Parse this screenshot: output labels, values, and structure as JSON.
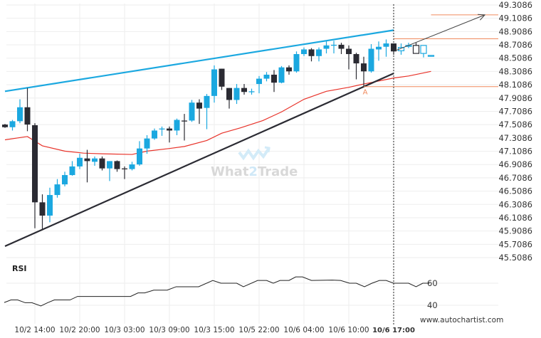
{
  "chart_data": {
    "type": "candlestick",
    "title": "",
    "price_axis": {
      "ylim": [
        45.5086,
        49.3086
      ],
      "ticks": [
        "49.3086",
        "49.1086",
        "48.9086",
        "48.7086",
        "48.5086",
        "48.3086",
        "48.1086",
        "47.9086",
        "47.7086",
        "47.5086",
        "47.3086",
        "47.1086",
        "46.9086",
        "46.7086",
        "46.5086",
        "46.3086",
        "46.1086",
        "45.9086",
        "45.7086",
        "45.5086"
      ]
    },
    "time_axis": {
      "labels": [
        {
          "index": 4,
          "text": "10/2 14:00"
        },
        {
          "index": 10,
          "text": "10/2 20:00"
        },
        {
          "index": 16,
          "text": "10/3 03:00"
        },
        {
          "index": 22,
          "text": "10/3 09:00"
        },
        {
          "index": 28,
          "text": "10/3 15:00"
        },
        {
          "index": 34,
          "text": "10/5 22:00"
        },
        {
          "index": 40,
          "text": "10/6 04:00"
        },
        {
          "index": 46,
          "text": "10/6 10:00"
        },
        {
          "index": 52,
          "text": "10/6 17:00",
          "highlight": true
        }
      ],
      "current_index": 52
    },
    "candles": [
      [
        47.51,
        47.52,
        47.46,
        47.47
      ],
      [
        47.47,
        47.58,
        47.42,
        47.56
      ],
      [
        47.56,
        47.89,
        47.53,
        47.77
      ],
      [
        47.77,
        48.06,
        47.41,
        47.51
      ],
      [
        47.5,
        47.53,
        45.95,
        46.34
      ],
      [
        46.34,
        46.46,
        45.93,
        46.14
      ],
      [
        46.14,
        46.56,
        46.04,
        46.45
      ],
      [
        46.45,
        46.69,
        46.41,
        46.61
      ],
      [
        46.61,
        46.8,
        46.58,
        46.75
      ],
      [
        46.75,
        46.96,
        46.74,
        46.88
      ],
      [
        46.88,
        47.07,
        46.84,
        47.01
      ],
      [
        47.0,
        47.13,
        46.64,
        46.96
      ],
      [
        46.95,
        47.03,
        46.89,
        47.0
      ],
      [
        47.0,
        47.03,
        46.82,
        46.85
      ],
      [
        46.85,
        46.96,
        46.66,
        46.96
      ],
      [
        46.96,
        46.97,
        46.8,
        46.84
      ],
      [
        46.85,
        46.88,
        46.69,
        46.84
      ],
      [
        46.84,
        46.95,
        46.82,
        46.91
      ],
      [
        46.91,
        47.26,
        46.89,
        47.15
      ],
      [
        47.15,
        47.35,
        47.07,
        47.3
      ],
      [
        47.3,
        47.45,
        47.28,
        47.42
      ],
      [
        47.44,
        47.48,
        47.34,
        47.45
      ],
      [
        47.45,
        47.48,
        47.24,
        47.42
      ],
      [
        47.42,
        47.6,
        47.35,
        47.58
      ],
      [
        47.57,
        47.67,
        47.27,
        47.56
      ],
      [
        47.57,
        47.88,
        47.55,
        47.84
      ],
      [
        47.84,
        47.89,
        47.52,
        47.75
      ],
      [
        47.76,
        47.97,
        47.44,
        47.94
      ],
      [
        47.94,
        48.4,
        47.84,
        48.34
      ],
      [
        48.35,
        48.35,
        48.03,
        48.08
      ],
      [
        48.06,
        48.06,
        47.75,
        47.88
      ],
      [
        47.88,
        48.12,
        47.82,
        48.06
      ],
      [
        48.06,
        48.12,
        47.96,
        48.0
      ],
      [
        48.0,
        48.05,
        47.96,
        48.01
      ],
      [
        48.12,
        48.24,
        47.98,
        48.2
      ],
      [
        48.2,
        48.3,
        48.16,
        48.26
      ],
      [
        48.26,
        48.33,
        48.0,
        48.14
      ],
      [
        48.14,
        48.39,
        48.13,
        48.37
      ],
      [
        48.37,
        48.4,
        48.26,
        48.31
      ],
      [
        48.31,
        48.61,
        48.29,
        48.57
      ],
      [
        48.57,
        48.67,
        48.54,
        48.64
      ],
      [
        48.64,
        48.66,
        48.46,
        48.54
      ],
      [
        48.54,
        48.67,
        48.46,
        48.64
      ],
      [
        48.65,
        48.77,
        48.58,
        48.7
      ],
      [
        48.7,
        48.77,
        48.58,
        48.71
      ],
      [
        48.71,
        48.74,
        48.57,
        48.65
      ],
      [
        48.65,
        48.7,
        48.34,
        48.57
      ],
      [
        48.57,
        48.59,
        48.19,
        48.43
      ],
      [
        48.43,
        48.53,
        48.08,
        48.31
      ],
      [
        48.31,
        48.72,
        48.29,
        48.65
      ],
      [
        48.64,
        48.76,
        48.47,
        48.68
      ],
      [
        48.68,
        48.79,
        48.53,
        48.73
      ],
      [
        48.73,
        48.73,
        48.56,
        48.61
      ]
    ],
    "forecast_candles": [
      [
        48.62,
        48.73,
        48.56,
        48.67
      ],
      [
        48.69,
        48.74,
        48.66,
        48.7
      ],
      [
        48.7,
        48.74,
        48.58,
        48.58
      ],
      [
        48.58,
        48.7,
        48.52,
        48.7
      ],
      [
        48.55,
        48.55,
        48.55,
        48.55
      ]
    ],
    "moving_average": [
      [
        0,
        47.28
      ],
      [
        3,
        47.33
      ],
      [
        5,
        47.19
      ],
      [
        8,
        47.11
      ],
      [
        10.5,
        47.08
      ],
      [
        13,
        47.07
      ],
      [
        17,
        47.06
      ],
      [
        19,
        47.11
      ],
      [
        22,
        47.15
      ],
      [
        24,
        47.18
      ],
      [
        27,
        47.27
      ],
      [
        29,
        47.38
      ],
      [
        31.5,
        47.46
      ],
      [
        34.5,
        47.57
      ],
      [
        37,
        47.7
      ],
      [
        40,
        47.89
      ],
      [
        43,
        48.01
      ],
      [
        46,
        48.07
      ],
      [
        48,
        48.12
      ],
      [
        52,
        48.21
      ],
      [
        54,
        48.24
      ],
      [
        57,
        48.31
      ]
    ],
    "resistance_line": {
      "from": [
        0,
        48.01
      ],
      "to": [
        52,
        48.93
      ]
    },
    "support_line": {
      "from": [
        0,
        45.68
      ],
      "to": [
        52,
        48.28
      ]
    },
    "forecast_arrow": {
      "from": [
        52.2,
        48.62
      ],
      "to": [
        64.2,
        49.16
      ]
    },
    "levels": [
      {
        "price": 49.16,
        "from_index": 57
      },
      {
        "price": 48.8,
        "from_index": 52
      },
      {
        "price": 48.08,
        "from_index": 48
      }
    ],
    "point_label": {
      "text": "A",
      "index": 48,
      "price": 48.01
    },
    "colors": {
      "bull": "#1ba8e0",
      "bear": "#2b2b33",
      "resistance": "#1ba8e0",
      "support": "#2b2b33",
      "ma": "#e8332a",
      "level": "#f08a5d",
      "grid": "#eeeeee"
    },
    "rsi": {
      "title": "RSI",
      "ticks": [
        "60",
        "40"
      ],
      "values": [
        [
          -0.1,
          42.5
        ],
        [
          0.8,
          44.8
        ],
        [
          1.7,
          44.8
        ],
        [
          2.7,
          42.3
        ],
        [
          3.6,
          42.3
        ],
        [
          4.8,
          39.4
        ],
        [
          5.7,
          42.3
        ],
        [
          6.6,
          44.8
        ],
        [
          8.7,
          44.8
        ],
        [
          9.7,
          48
        ],
        [
          16.8,
          48
        ],
        [
          17.8,
          51.2
        ],
        [
          18.7,
          51.2
        ],
        [
          19.9,
          53.7
        ],
        [
          21.7,
          53.7
        ],
        [
          22.9,
          56.8
        ],
        [
          25.9,
          56.8
        ],
        [
          27.8,
          62.5
        ],
        [
          28.9,
          60
        ],
        [
          31,
          60
        ],
        [
          31.9,
          56.8
        ],
        [
          33.8,
          62.5
        ],
        [
          35,
          62.5
        ],
        [
          35.9,
          60
        ],
        [
          36.8,
          62.5
        ],
        [
          38,
          62.5
        ],
        [
          38.9,
          65.7
        ],
        [
          39.8,
          65.7
        ],
        [
          41,
          62.5
        ],
        [
          43.8,
          62.8
        ],
        [
          44.9,
          62.5
        ],
        [
          46.1,
          60
        ],
        [
          47,
          60
        ],
        [
          48.1,
          56.8
        ],
        [
          49.1,
          60
        ],
        [
          50.1,
          62.5
        ],
        [
          51,
          62.5
        ],
        [
          52,
          60
        ],
        [
          54,
          60
        ],
        [
          55,
          56.8
        ],
        [
          55.9,
          60
        ],
        [
          56.8,
          60
        ]
      ]
    }
  },
  "watermark": {
    "part1": "What",
    "part2": "2",
    "part3": "Trade"
  },
  "footer": {
    "url": "www.autochartist.com"
  }
}
